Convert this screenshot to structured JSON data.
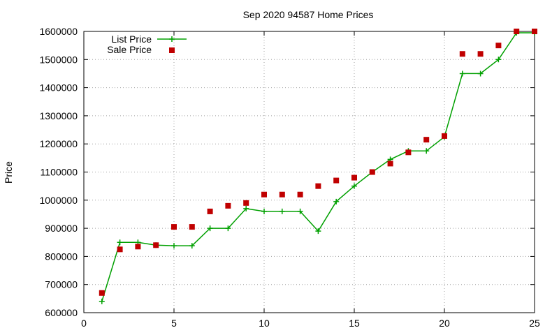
{
  "chart_data": {
    "type": "line",
    "title": "Sep 2020 94587 Home Prices",
    "xlabel": "",
    "ylabel": "Price",
    "xlim": [
      0,
      25
    ],
    "ylim": [
      600000,
      1600000
    ],
    "x_ticks": [
      0,
      5,
      10,
      15,
      20,
      25
    ],
    "y_ticks": [
      600000,
      700000,
      800000,
      900000,
      1000000,
      1100000,
      1200000,
      1300000,
      1400000,
      1500000,
      1600000
    ],
    "grid": true,
    "legend_position": "top-left",
    "x": [
      1,
      2,
      3,
      4,
      5,
      6,
      7,
      8,
      9,
      10,
      11,
      12,
      13,
      14,
      15,
      16,
      17,
      18,
      19,
      20,
      21,
      22,
      23,
      24,
      25
    ],
    "series": [
      {
        "name": "List Price",
        "style": "line-with-plus-markers",
        "color": "#00a000",
        "values": [
          640000,
          850000,
          850000,
          840000,
          838000,
          838000,
          900000,
          900000,
          970000,
          960000,
          960000,
          960000,
          890000,
          995000,
          1050000,
          1100000,
          1145000,
          1175000,
          1175000,
          1225000,
          1450000,
          1450000,
          1500000,
          1595000,
          1595000
        ]
      },
      {
        "name": "Sale Price",
        "style": "square-markers",
        "color": "#c00000",
        "values": [
          670000,
          825000,
          835000,
          840000,
          905000,
          905000,
          960000,
          980000,
          990000,
          1020000,
          1020000,
          1020000,
          1050000,
          1070000,
          1080000,
          1100000,
          1130000,
          1170000,
          1215000,
          1228000,
          1520000,
          1520000,
          1550000,
          1600000,
          1600000
        ]
      }
    ]
  }
}
